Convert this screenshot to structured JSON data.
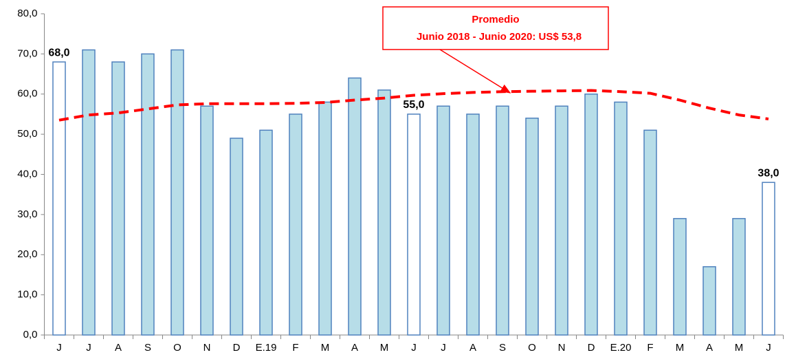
{
  "chart_data": {
    "type": "bar",
    "categories": [
      "J",
      "J",
      "A",
      "S",
      "O",
      "N",
      "D",
      "E.19",
      "F",
      "M",
      "A",
      "M",
      "J",
      "J",
      "A",
      "S",
      "O",
      "N",
      "D",
      "E.20",
      "F",
      "M",
      "A",
      "M",
      "J"
    ],
    "series": [
      {
        "kind": "bar",
        "color": "#b7dde8",
        "edge": "#4f81bd",
        "colors": [
          "#ffffff",
          "#b7dde8",
          "#b7dde8",
          "#b7dde8",
          "#b7dde8",
          "#b7dde8",
          "#b7dde8",
          "#b7dde8",
          "#b7dde8",
          "#b7dde8",
          "#b7dde8",
          "#b7dde8",
          "#ffffff",
          "#b7dde8",
          "#b7dde8",
          "#b7dde8",
          "#b7dde8",
          "#b7dde8",
          "#b7dde8",
          "#b7dde8",
          "#b7dde8",
          "#b7dde8",
          "#b7dde8",
          "#b7dde8",
          "#ffffff"
        ],
        "values": [
          68,
          71,
          68,
          70,
          71,
          57,
          49,
          51,
          55,
          58,
          64,
          61,
          55,
          57,
          55,
          57,
          54,
          57,
          60,
          58,
          51,
          29,
          17,
          29,
          38
        ],
        "value_labels": [
          "68,0",
          null,
          null,
          null,
          null,
          null,
          null,
          null,
          null,
          null,
          null,
          null,
          "55,0",
          null,
          null,
          null,
          null,
          null,
          null,
          null,
          null,
          null,
          null,
          null,
          "38,0"
        ]
      },
      {
        "kind": "line",
        "color": "#ff0000",
        "dashed": true,
        "values": [
          53.5,
          54.8,
          55.3,
          56.3,
          57.3,
          57.6,
          57.6,
          57.6,
          57.7,
          57.9,
          58.5,
          59.0,
          59.7,
          60.1,
          60.4,
          60.6,
          60.7,
          60.8,
          60.9,
          60.6,
          60.2,
          58.5,
          56.5,
          54.8,
          53.8
        ]
      }
    ],
    "annotation": {
      "title": "Promedio",
      "text": "Junio 2018 - Junio 2020: US$ 53,8"
    },
    "ylim": [
      0,
      80
    ],
    "yticks": [
      {
        "value": 0,
        "label": "0,0"
      },
      {
        "value": 10,
        "label": "10,0"
      },
      {
        "value": 20,
        "label": "20,0"
      },
      {
        "value": 30,
        "label": "30,0"
      },
      {
        "value": 40,
        "label": "40,0"
      },
      {
        "value": 50,
        "label": "50,0"
      },
      {
        "value": 60,
        "label": "60,0"
      },
      {
        "value": 70,
        "label": "70,0"
      },
      {
        "value": 80,
        "label": "80,0"
      }
    ],
    "grid": false
  }
}
